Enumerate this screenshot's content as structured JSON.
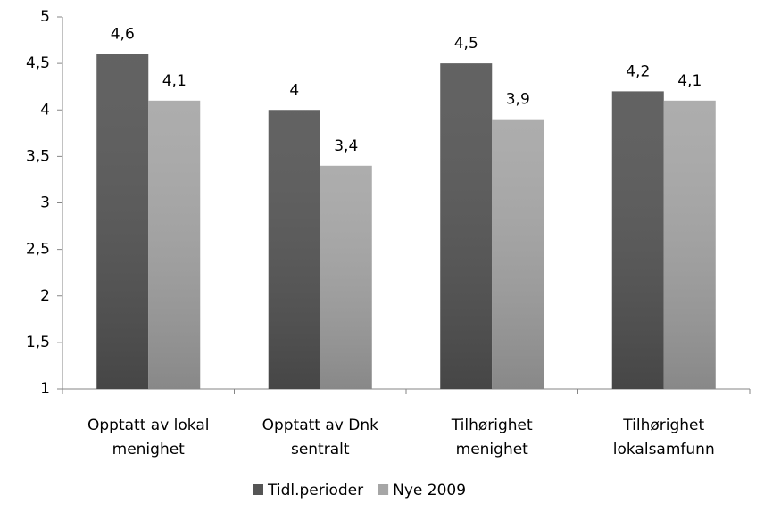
{
  "chart_data": {
    "type": "bar",
    "categories": [
      [
        "Opptatt av lokal",
        "menighet"
      ],
      [
        "Opptatt av Dnk",
        "sentralt"
      ],
      [
        "Tilhørighet",
        "menighet"
      ],
      [
        "Tilhørighet",
        "lokalsamfunn"
      ]
    ],
    "series": [
      {
        "name": "Tidl.perioder",
        "color": "#555555",
        "values": [
          4.6,
          4,
          4.5,
          4.2
        ],
        "value_labels": [
          "4,6",
          "4",
          "4,5",
          "4,2"
        ]
      },
      {
        "name": "Nye 2009",
        "color": "#a6a6a6",
        "values": [
          4.1,
          3.4,
          3.9,
          4.1
        ],
        "value_labels": [
          "4,1",
          "3,4",
          "3,9",
          "4,1"
        ]
      }
    ],
    "ylim": [
      1,
      5
    ],
    "yticks": [
      1,
      {
        "value": 1.5,
        "label": "1,5"
      },
      2,
      {
        "value": 2.5,
        "label": "2,5"
      },
      3,
      {
        "value": 3.5,
        "label": "3,5"
      },
      4,
      {
        "value": 4.5,
        "label": "4,5"
      },
      5
    ],
    "grid": false,
    "legend": "bottom"
  }
}
